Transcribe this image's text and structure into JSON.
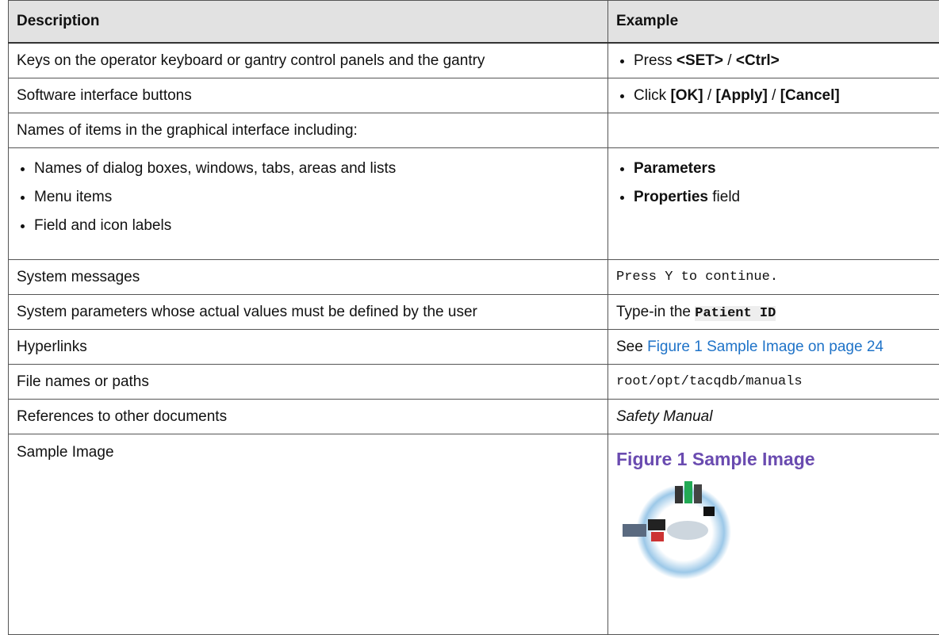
{
  "table": {
    "header": [
      "Description",
      "Example"
    ],
    "rows": [
      {
        "description": "Keys on the operator keyboard or gantry control panels and the gantry",
        "example": [
          "Press ",
          "<SET>",
          " / ",
          "<Ctrl>"
        ]
      },
      {
        "description": "Software interface buttons",
        "example": [
          "Click ",
          "[OK]",
          " / ",
          "[Apply]",
          " / ",
          "[Cancel]"
        ]
      },
      {
        "description": "Names of items in the graphical interface including:"
      },
      {
        "description_items": [
          "Names of dialog boxes, windows, tabs, areas and lists",
          "Menu items",
          "Field and icon labels"
        ],
        "example_items": [
          [
            "Parameters"
          ],
          [
            "Properties",
            " field"
          ]
        ]
      },
      {
        "description": "System messages",
        "example": "Press Y to continue."
      },
      {
        "description": "System parameters whose actual values must be defined by the user",
        "example": [
          "Type-in the ",
          "Patient ID"
        ]
      },
      {
        "description": "Hyperlinks",
        "example": [
          "See ",
          "Figure 1 Sample Image on page 24"
        ]
      },
      {
        "description": "File names or paths",
        "example": "root/opt/tacqdb/manuals"
      },
      {
        "description": "References to other documents",
        "example": "Safety Manual"
      },
      {
        "description": "Sample Image",
        "figure_caption": "Figure 1 Sample Image"
      }
    ]
  }
}
